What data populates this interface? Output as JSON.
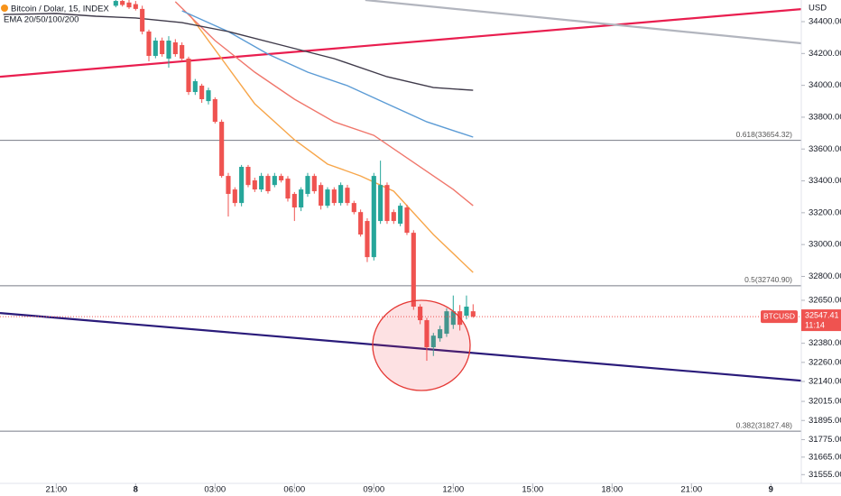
{
  "chart_data": {
    "type": "candlestick",
    "title": "Bitcoin / Dolar, 15, INDEX",
    "indicator": "EMA 20/50/100/200",
    "currency": "USD",
    "up_color": "#26a69a",
    "down_color": "#ef5350",
    "xlim": [
      -8.5,
      112.6
    ],
    "ylim": [
      31500,
      34536
    ],
    "xticks": [
      {
        "value": 0,
        "label": "21:00"
      },
      {
        "value": 12,
        "label": "8"
      },
      {
        "value": 24,
        "label": "03:00"
      },
      {
        "value": 36,
        "label": "06:00"
      },
      {
        "value": 48,
        "label": "09:00"
      },
      {
        "value": 60,
        "label": "12:00"
      },
      {
        "value": 72,
        "label": "15:00"
      },
      {
        "value": 84,
        "label": "18:00"
      },
      {
        "value": 96,
        "label": "21:00"
      },
      {
        "value": 108,
        "label": "9"
      }
    ],
    "yticks": [
      {
        "value": 34400,
        "label": "34400.00"
      },
      {
        "value": 34200,
        "label": "34200.00"
      },
      {
        "value": 34000,
        "label": "34000.00"
      },
      {
        "value": 33800,
        "label": "33800.00"
      },
      {
        "value": 33600,
        "label": "33600.00"
      },
      {
        "value": 33400,
        "label": "33400.00"
      },
      {
        "value": 33200,
        "label": "33200.00"
      },
      {
        "value": 33000,
        "label": "33000.00"
      },
      {
        "value": 32800,
        "label": "32800.00"
      },
      {
        "value": 32650,
        "label": "32650.00"
      },
      {
        "value": 32380,
        "label": "32380.00"
      },
      {
        "value": 32260,
        "label": "32260.00"
      },
      {
        "value": 32140,
        "label": "32140.00"
      },
      {
        "value": 32015,
        "label": "32015.00"
      },
      {
        "value": 31895,
        "label": "31895.00"
      },
      {
        "value": 31775,
        "label": "31775.00"
      },
      {
        "value": 31665,
        "label": "31665.00"
      },
      {
        "value": 31555,
        "label": "31555.00"
      }
    ],
    "x": [
      9,
      10,
      11,
      12,
      13,
      14,
      15,
      16,
      17,
      18,
      19,
      20,
      21,
      22,
      23,
      24,
      25,
      26,
      27,
      28,
      29,
      30,
      31,
      32,
      33,
      34,
      35,
      36,
      37,
      38,
      39,
      40,
      41,
      42,
      43,
      44,
      45,
      46,
      47,
      48,
      49,
      50,
      51,
      52,
      53,
      54,
      55,
      56,
      57,
      58,
      59,
      60,
      61,
      62,
      63
    ],
    "open": [
      34500,
      34530,
      34520,
      34510,
      34480,
      34338,
      34185,
      34281,
      34168,
      34270,
      34253,
      34168,
      33958,
      33998,
      33901,
      33913,
      33771,
      33431,
      33346,
      33261,
      33488,
      33403,
      33346,
      33431,
      33374,
      33431,
      33414,
      33318,
      33233,
      33318,
      33431,
      33374,
      33244,
      33346,
      33261,
      33357,
      33261,
      33204,
      33148,
      32921,
      33148,
      33374,
      33204,
      33131,
      33233,
      33074,
      32610,
      32525,
      32355,
      32411,
      32440,
      32496,
      32581,
      32553,
      32581
    ],
    "high": [
      34540,
      34536,
      34536,
      34530,
      34500,
      34350,
      34300,
      34300,
      34309,
      34290,
      34270,
      34180,
      34040,
      34010,
      33985,
      33925,
      33785,
      33450,
      33360,
      33500,
      33500,
      33420,
      33450,
      33445,
      33450,
      33445,
      33430,
      33330,
      33360,
      33450,
      33445,
      33390,
      33360,
      33360,
      33390,
      33375,
      33275,
      33220,
      33165,
      33450,
      33527,
      33390,
      33220,
      33260,
      33250,
      33090,
      32625,
      32540,
      32445,
      32490,
      32600,
      32680,
      32620,
      32680,
      32625
    ],
    "low": [
      34490,
      34495,
      34480,
      34470,
      34320,
      34151,
      34170,
      34180,
      34111,
      34180,
      34150,
      33940,
      33940,
      33890,
      33880,
      33760,
      33420,
      33176,
      33240,
      33240,
      33360,
      33330,
      33330,
      33320,
      33360,
      33390,
      33270,
      33148,
      33210,
      33300,
      33320,
      33220,
      33230,
      33245,
      33245,
      33245,
      33190,
      33050,
      32890,
      32900,
      33130,
      33130,
      33130,
      33115,
      33060,
      32590,
      32500,
      32270,
      32300,
      32390,
      32420,
      32470,
      32460,
      32530,
      32540
    ],
    "close": [
      34530,
      34505,
      34490,
      34480,
      34338,
      34185,
      34281,
      34196,
      34281,
      34196,
      34168,
      33958,
      34026,
      33913,
      33969,
      33771,
      33431,
      33318,
      33261,
      33488,
      33374,
      33346,
      33431,
      33335,
      33431,
      33403,
      33289,
      33233,
      33346,
      33431,
      33335,
      33244,
      33346,
      33261,
      33374,
      33261,
      33204,
      33063,
      32921,
      33431,
      33374,
      33148,
      33148,
      33244,
      33074,
      32610,
      32525,
      32355,
      32428,
      32468,
      32581,
      32581,
      32496,
      32610,
      32547.41
    ],
    "series": [
      {
        "color": "#f7a64a",
        "x": [
          20,
          24,
          30,
          36,
          41,
          46,
          51,
          57,
          63
        ],
        "values": [
          34451,
          34224,
          33884,
          33658,
          33505,
          33431,
          33335,
          33063,
          32825
        ]
      },
      {
        "color": "#f0776c",
        "x": [
          18,
          24,
          30,
          36,
          42,
          48,
          54,
          60,
          63
        ],
        "values": [
          34525,
          34281,
          34083,
          33913,
          33771,
          33686,
          33516,
          33346,
          33244
        ]
      },
      {
        "color": "#5b9bd5",
        "x": [
          19,
          26,
          32,
          38,
          44,
          50,
          56,
          63
        ],
        "values": [
          34468,
          34338,
          34196,
          34083,
          33998,
          33884,
          33771,
          33675
        ]
      },
      {
        "color": "#3f3a4a",
        "x": [
          -8,
          0,
          6,
          12,
          19,
          26,
          34,
          42,
          50,
          57,
          63
        ],
        "values": [
          34445,
          34451,
          34434,
          34423,
          34394,
          34338,
          34253,
          34168,
          34054,
          33986,
          33969
        ]
      }
    ],
    "trend_lines": [
      {
        "color": "#e91e4f",
        "x": [
          -8.5,
          112.6
        ],
        "values": [
          34054,
          34479
        ]
      },
      {
        "color": "#b2b5be",
        "x": [
          46.7,
          112.6
        ],
        "values": [
          34536,
          34264
        ]
      },
      {
        "color": "#2a1b7a",
        "x": [
          -8.5,
          112.6
        ],
        "values": [
          32570,
          32145
        ]
      }
    ],
    "fib_levels": [
      {
        "value": 33654.32,
        "label": "0.618(33654.32)"
      },
      {
        "value": 32740.9,
        "label": "0.5(32740.90)"
      },
      {
        "value": 31827.48,
        "label": "0.382(31827.48)"
      }
    ],
    "last_price": {
      "symbol": "BTCUSD",
      "value": 32547.41,
      "countdown": "11:14",
      "color": "#ef5350"
    }
  }
}
